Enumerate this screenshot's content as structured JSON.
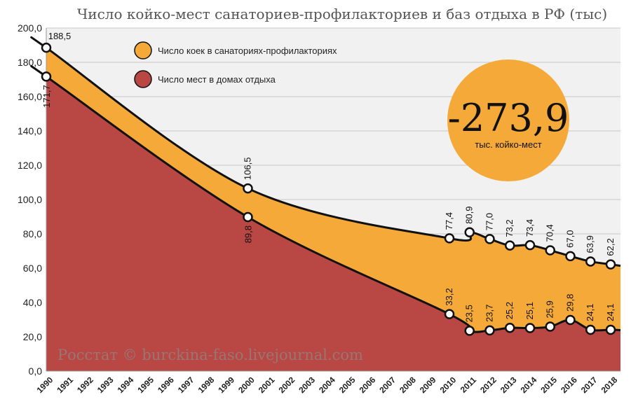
{
  "chart_data": {
    "type": "area",
    "title": "Число койко-мест санаториев-профилакториев и баз отдыха в РФ (тыс)",
    "x": [
      1990,
      1991,
      1992,
      1993,
      1994,
      1995,
      1996,
      1997,
      1998,
      1999,
      2000,
      2001,
      2002,
      2003,
      2004,
      2005,
      2006,
      2007,
      2008,
      2009,
      2010,
      2011,
      2012,
      2013,
      2014,
      2015,
      2016,
      2017,
      2018
    ],
    "x_tick_labels": [
      "1990",
      "1991",
      "1992",
      "1993",
      "1994",
      "1995",
      "1996",
      "1997",
      "1998",
      "1999",
      "2000",
      "2001",
      "2002",
      "2003",
      "2004",
      "2005",
      "2006",
      "2007",
      "2008",
      "2009",
      "2010",
      "2011",
      "2012",
      "2013",
      "2014",
      "2015",
      "2016",
      "2017",
      "2018"
    ],
    "ylim": [
      0,
      200
    ],
    "y_ticks": [
      0,
      20,
      40,
      60,
      80,
      100,
      120,
      140,
      160,
      180,
      200
    ],
    "y_tick_labels": [
      "0,0",
      "20,0",
      "40,0",
      "60,0",
      "80,0",
      "100,0",
      "120,0",
      "140,0",
      "160,0",
      "180,0",
      "200,0"
    ],
    "grid": true,
    "legend_position": "top-left",
    "series": [
      {
        "name": "Число коек в санаториях-профилакториях",
        "color": "#f4a938",
        "display": "stacked total (upper line)",
        "points": [
          {
            "x": 1990,
            "y": 188.5,
            "label": "188,5"
          },
          {
            "x": 2000,
            "y": 106.5,
            "label": "106,5"
          },
          {
            "x": 2010,
            "y": 77.4,
            "label": "77,4"
          },
          {
            "x": 2011,
            "y": 80.9,
            "label": "80,9"
          },
          {
            "x": 2012,
            "y": 77.0,
            "label": "77,0"
          },
          {
            "x": 2013,
            "y": 73.2,
            "label": "73,2"
          },
          {
            "x": 2014,
            "y": 73.4,
            "label": "73,4"
          },
          {
            "x": 2015,
            "y": 70.4,
            "label": "70,4"
          },
          {
            "x": 2016,
            "y": 67.0,
            "label": "67,0"
          },
          {
            "x": 2017,
            "y": 63.9,
            "label": "63,9"
          },
          {
            "x": 2018,
            "y": 62.2,
            "label": "62,2"
          }
        ]
      },
      {
        "name": "Число мест в домах отдыха",
        "color": "#b94743",
        "display": "lower area",
        "points": [
          {
            "x": 1990,
            "y": 171.7,
            "label": "171,7"
          },
          {
            "x": 2000,
            "y": 89.8,
            "label": "89,8"
          },
          {
            "x": 2010,
            "y": 33.2,
            "label": "33,2"
          },
          {
            "x": 2011,
            "y": 23.5,
            "label": "23,5"
          },
          {
            "x": 2012,
            "y": 23.7,
            "label": "23,7"
          },
          {
            "x": 2013,
            "y": 25.2,
            "label": "25,2"
          },
          {
            "x": 2014,
            "y": 25.1,
            "label": "25,1"
          },
          {
            "x": 2015,
            "y": 25.9,
            "label": "25,9"
          },
          {
            "x": 2016,
            "y": 29.8,
            "label": "29,8"
          },
          {
            "x": 2017,
            "y": 24.1,
            "label": "24,1"
          },
          {
            "x": 2018,
            "y": 24.1,
            "label": "24,1"
          }
        ]
      }
    ],
    "annotation": {
      "value": "-273,9",
      "unit": "тыс. койко-мест",
      "color": "#f4a938"
    },
    "source": "Росстат © burckina-faso.livejournal.com"
  },
  "colors": {
    "plot_background": "#f1f1f1",
    "grid": "#c8c8c8",
    "line": "#111111"
  }
}
